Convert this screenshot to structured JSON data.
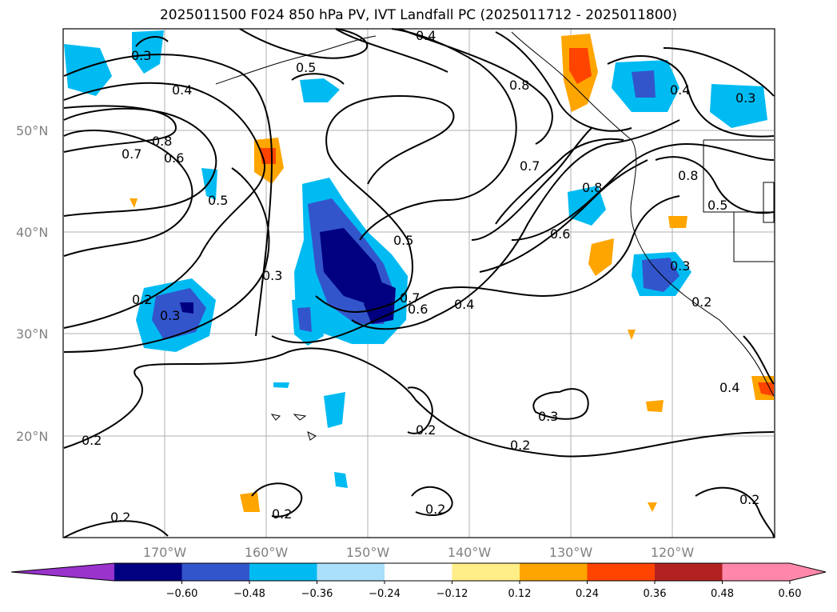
{
  "title": "2025011500 F024 850 hPa PV, IVT Landfall PC (2025011712 - 2025011800)",
  "map": {
    "lat_labels": [
      "50°N",
      "40°N",
      "30°N",
      "20°N"
    ],
    "lon_labels": [
      "170°W",
      "160°W",
      "150°W",
      "140°W",
      "130°W",
      "120°W"
    ],
    "contour_labels": [
      "0.3",
      "0.4",
      "0.5",
      "0.4",
      "0.8",
      "0.7",
      "0.8",
      "0.6",
      "0.5",
      "0.3",
      "0.2",
      "0.3",
      "0.7",
      "0.5",
      "0.6",
      "0.4",
      "0.6",
      "0.7",
      "0.8",
      "0.8",
      "0.5",
      "0.4",
      "0.3",
      "0.3",
      "0.2",
      "0.4",
      "0.3",
      "0.2",
      "0.2",
      "0.2",
      "0.2",
      "0.2",
      "0.2",
      "0.2"
    ]
  },
  "colorbar": {
    "ticks": [
      "−0.60",
      "−0.48",
      "−0.36",
      "−0.24",
      "−0.12",
      "0.12",
      "0.24",
      "0.36",
      "0.48",
      "0.60"
    ],
    "colors": [
      "#9933cc",
      "#000080",
      "#3355cc",
      "#00bbf2",
      "#aae0fa",
      "#ffffff",
      "#ffee88",
      "#ffa500",
      "#ff4400",
      "#b22222",
      "#ff88aa",
      "#ff88aa"
    ]
  }
}
